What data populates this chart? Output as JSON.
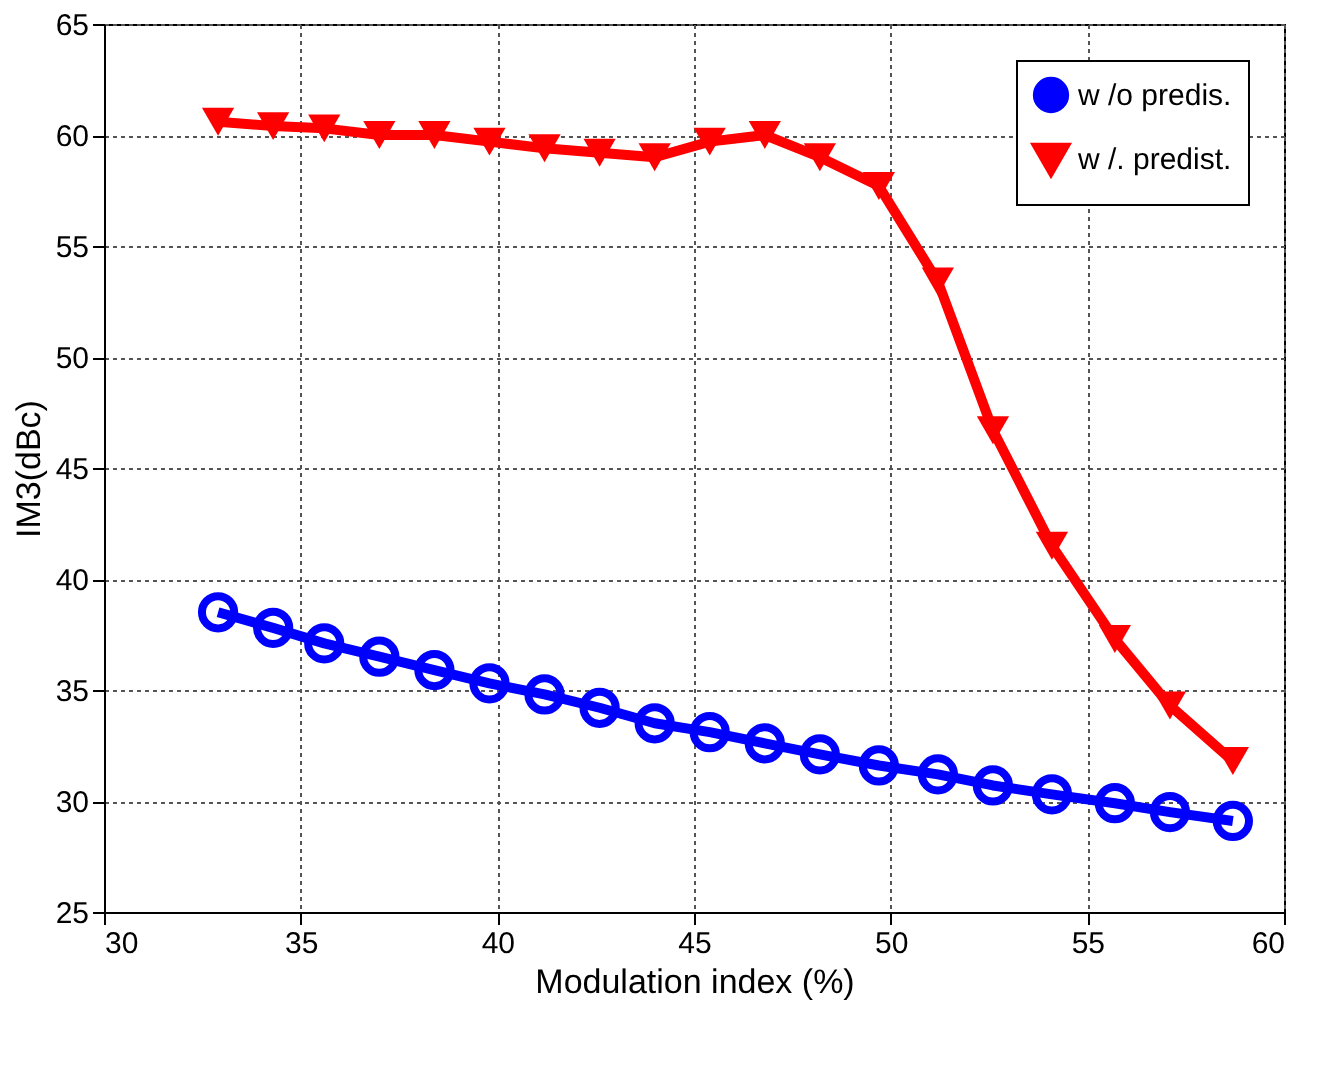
{
  "chart_data": {
    "type": "line",
    "xlabel": "Modulation index (%)",
    "ylabel": "IM3(dBc)",
    "x": [
      32.9,
      34.3,
      35.6,
      37.0,
      38.4,
      39.8,
      41.2,
      42.6,
      44.0,
      45.4,
      46.8,
      48.2,
      49.7,
      51.2,
      52.6,
      54.1,
      55.7,
      57.1,
      58.7
    ],
    "series": [
      {
        "name": "w /o predis.",
        "color": "#0000ff",
        "marker": "circle",
        "values": [
          38.5,
          37.8,
          37.1,
          36.5,
          35.9,
          35.3,
          34.8,
          34.2,
          33.5,
          33.1,
          32.6,
          32.1,
          31.6,
          31.2,
          30.7,
          30.3,
          29.9,
          29.5,
          29.1
        ]
      },
      {
        "name": "w /. predist.",
        "color": "#ff0000",
        "marker": "triangle",
        "values": [
          60.6,
          60.4,
          60.3,
          60.0,
          60.0,
          59.7,
          59.4,
          59.2,
          59.0,
          59.7,
          60.0,
          59.0,
          57.7,
          53.4,
          46.7,
          41.5,
          37.3,
          34.3,
          31.8
        ]
      }
    ],
    "xlim": [
      30,
      60
    ],
    "xticks": [
      30,
      35,
      40,
      45,
      50,
      55,
      60
    ],
    "ylim": [
      25,
      65
    ],
    "yticks": [
      25,
      30,
      35,
      40,
      45,
      50,
      55,
      60,
      65
    ],
    "grid": true,
    "legend": "top right",
    "line_style": "solid"
  }
}
